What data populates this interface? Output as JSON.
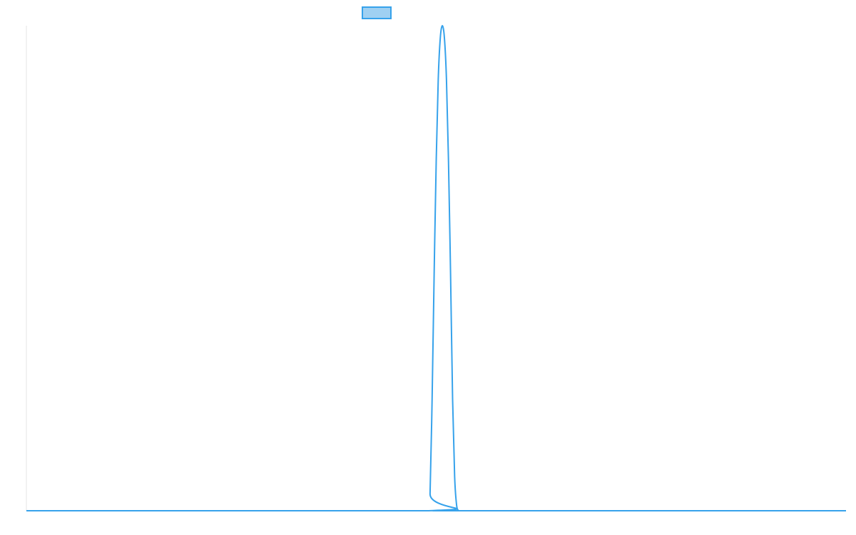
{
  "chart_data": {
    "type": "line",
    "title": "",
    "xlabel": "",
    "ylabel": "",
    "legend": {
      "position": "top-center",
      "entries": [
        {
          "label": "",
          "swatch_fill": "#9fd0f2",
          "swatch_border": "#36a2eb"
        }
      ]
    },
    "grid": false,
    "xlim": [
      0,
      1
    ],
    "ylim": [
      0,
      1
    ],
    "series": [
      {
        "color": "#36a2eb",
        "x": [
          0,
          0.49,
          0.4925,
          0.495,
          0.4975,
          0.5,
          0.5025,
          0.505,
          0.5075,
          0.51,
          0.5125,
          0.515,
          0.5175,
          0.52,
          0.5225,
          0.525,
          0.5275,
          0.53,
          1
        ],
        "y": [
          0,
          0,
          0.035,
          0.23,
          0.49,
          0.72,
          0.89,
          0.975,
          1.0,
          0.975,
          0.89,
          0.72,
          0.49,
          0.23,
          0.07,
          0.01,
          0.0,
          0,
          0
        ]
      }
    ],
    "axes": {
      "y_axis_color": "#e6e6e6",
      "x_axis_color": "#e6e6e6"
    }
  }
}
